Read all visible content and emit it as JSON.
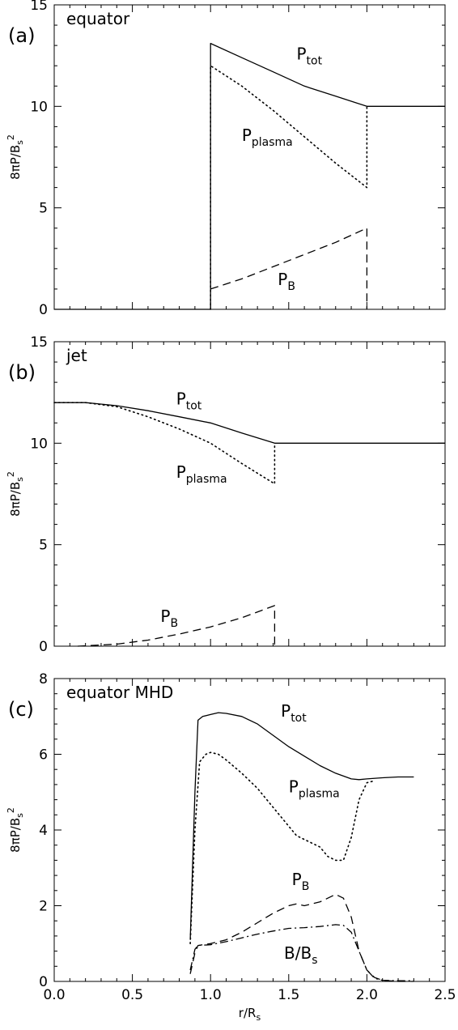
{
  "chart_data": [
    {
      "type": "line",
      "tag": "(a)",
      "title": "equator",
      "ylabel": {
        "base": "8πP/B",
        "sub": "s",
        "sup": "2"
      },
      "xlim": [
        0,
        2.5
      ],
      "ylim": [
        0,
        15
      ],
      "yticks": [
        0,
        5,
        10,
        15
      ],
      "ytick_labels": [
        "0",
        "5",
        "10",
        "15"
      ],
      "series": [
        {
          "name": "P_tot",
          "style": "solid",
          "points": [
            [
              0,
              0
            ],
            [
              1.0,
              0
            ],
            [
              1.0,
              13.1
            ],
            [
              1.2,
              12.4
            ],
            [
              1.4,
              11.7
            ],
            [
              1.6,
              11.0
            ],
            [
              1.8,
              10.5
            ],
            [
              2.0,
              10.0
            ],
            [
              2.5,
              10.0
            ]
          ]
        },
        {
          "name": "P_plasma",
          "style": "dotted",
          "points": [
            [
              1.0,
              0
            ],
            [
              1.0,
              12.0
            ],
            [
              1.2,
              11.0
            ],
            [
              1.4,
              9.8
            ],
            [
              1.6,
              8.5
            ],
            [
              1.8,
              7.2
            ],
            [
              2.0,
              6.0
            ],
            [
              2.0,
              10.0
            ]
          ]
        },
        {
          "name": "P_B",
          "style": "dashed",
          "points": [
            [
              1.0,
              1.0
            ],
            [
              1.2,
              1.5
            ],
            [
              1.4,
              2.1
            ],
            [
              1.6,
              2.7
            ],
            [
              1.8,
              3.3
            ],
            [
              2.0,
              4.0
            ],
            [
              2.0,
              0
            ]
          ]
        }
      ],
      "annotations": [
        {
          "base": "P",
          "sub": "tot",
          "x": 1.55,
          "y": 12.3
        },
        {
          "base": "P",
          "sub": "plasma",
          "x": 1.2,
          "y": 8.3
        },
        {
          "base": "P",
          "sub": "B",
          "x": 1.43,
          "y": 1.2
        }
      ]
    },
    {
      "type": "line",
      "tag": "(b)",
      "title": "jet",
      "ylabel": {
        "base": "8πP/B",
        "sub": "s",
        "sup": "2"
      },
      "xlim": [
        0,
        2.5
      ],
      "ylim": [
        0,
        15
      ],
      "yticks": [
        0,
        5,
        10,
        15
      ],
      "ytick_labels": [
        "0",
        "5",
        "10",
        "15"
      ],
      "series": [
        {
          "name": "P_tot",
          "style": "solid",
          "points": [
            [
              0,
              12.0
            ],
            [
              0.2,
              12.0
            ],
            [
              0.4,
              11.85
            ],
            [
              0.6,
              11.6
            ],
            [
              0.8,
              11.3
            ],
            [
              1.0,
              11.0
            ],
            [
              1.2,
              10.5
            ],
            [
              1.41,
              10.0
            ],
            [
              2.5,
              10.0
            ]
          ]
        },
        {
          "name": "P_plasma",
          "style": "dotted",
          "points": [
            [
              0,
              12.0
            ],
            [
              0.2,
              12.0
            ],
            [
              0.4,
              11.8
            ],
            [
              0.6,
              11.3
            ],
            [
              0.8,
              10.7
            ],
            [
              1.0,
              10.0
            ],
            [
              1.2,
              9.0
            ],
            [
              1.41,
              8.0
            ],
            [
              1.41,
              10.0
            ]
          ]
        },
        {
          "name": "P_B",
          "style": "dashed",
          "points": [
            [
              0.15,
              0
            ],
            [
              0.4,
              0.1
            ],
            [
              0.6,
              0.3
            ],
            [
              0.8,
              0.6
            ],
            [
              1.0,
              0.95
            ],
            [
              1.2,
              1.4
            ],
            [
              1.41,
              2.0
            ],
            [
              1.41,
              0
            ]
          ]
        }
      ],
      "annotations": [
        {
          "base": "P",
          "sub": "tot",
          "x": 0.78,
          "y": 11.9
        },
        {
          "base": "P",
          "sub": "plasma",
          "x": 0.78,
          "y": 8.3
        },
        {
          "base": "P",
          "sub": "B",
          "x": 0.68,
          "y": 1.2
        }
      ]
    },
    {
      "type": "line",
      "tag": "(c)",
      "title": "equator MHD",
      "ylabel": {
        "base": "8πP/B",
        "sub": "s",
        "sup": "2"
      },
      "xlabel": {
        "base": "r/R",
        "sub": "s"
      },
      "xlim": [
        0,
        2.5
      ],
      "xticks": [
        0.0,
        0.5,
        1.0,
        1.5,
        2.0,
        2.5
      ],
      "xtick_labels": [
        "0.0",
        "0.5",
        "1.0",
        "1.5",
        "2.0",
        "2.5"
      ],
      "ylim": [
        0,
        8
      ],
      "yticks": [
        0,
        2,
        4,
        6,
        8
      ],
      "ytick_labels": [
        "0",
        "2",
        "4",
        "6",
        "8"
      ],
      "series": [
        {
          "name": "P_tot",
          "style": "solid",
          "points": [
            [
              0.87,
              1.1
            ],
            [
              0.9,
              5.0
            ],
            [
              0.92,
              6.9
            ],
            [
              0.95,
              7.0
            ],
            [
              1.0,
              7.05
            ],
            [
              1.05,
              7.1
            ],
            [
              1.1,
              7.08
            ],
            [
              1.2,
              7.0
            ],
            [
              1.3,
              6.8
            ],
            [
              1.4,
              6.5
            ],
            [
              1.5,
              6.2
            ],
            [
              1.6,
              5.95
            ],
            [
              1.7,
              5.7
            ],
            [
              1.8,
              5.5
            ],
            [
              1.9,
              5.35
            ],
            [
              1.95,
              5.33
            ],
            [
              2.0,
              5.35
            ],
            [
              2.1,
              5.38
            ],
            [
              2.2,
              5.4
            ],
            [
              2.3,
              5.4
            ]
          ]
        },
        {
          "name": "P_plasma",
          "style": "dotted",
          "points": [
            [
              0.87,
              1.0
            ],
            [
              0.9,
              4.0
            ],
            [
              0.93,
              5.8
            ],
            [
              0.97,
              6.0
            ],
            [
              1.0,
              6.05
            ],
            [
              1.05,
              6.0
            ],
            [
              1.1,
              5.85
            ],
            [
              1.2,
              5.5
            ],
            [
              1.3,
              5.1
            ],
            [
              1.4,
              4.6
            ],
            [
              1.5,
              4.1
            ],
            [
              1.55,
              3.85
            ],
            [
              1.6,
              3.75
            ],
            [
              1.7,
              3.55
            ],
            [
              1.75,
              3.3
            ],
            [
              1.8,
              3.2
            ],
            [
              1.85,
              3.2
            ],
            [
              1.9,
              3.8
            ],
            [
              1.95,
              4.8
            ],
            [
              2.0,
              5.25
            ],
            [
              2.05,
              5.3
            ]
          ]
        },
        {
          "name": "P_B",
          "style": "dashed",
          "points": [
            [
              0.87,
              0.2
            ],
            [
              0.9,
              0.75
            ],
            [
              0.92,
              0.95
            ],
            [
              1.0,
              1.0
            ],
            [
              1.1,
              1.1
            ],
            [
              1.2,
              1.3
            ],
            [
              1.3,
              1.55
            ],
            [
              1.4,
              1.8
            ],
            [
              1.5,
              2.0
            ],
            [
              1.55,
              2.05
            ],
            [
              1.6,
              2.0
            ],
            [
              1.7,
              2.1
            ],
            [
              1.8,
              2.3
            ],
            [
              1.85,
              2.2
            ],
            [
              1.9,
              1.7
            ],
            [
              1.95,
              0.8
            ],
            [
              2.0,
              0.3
            ],
            [
              2.05,
              0.1
            ],
            [
              2.1,
              0.03
            ],
            [
              2.2,
              0.0
            ],
            [
              2.3,
              0.0
            ]
          ]
        },
        {
          "name": "B/B_s",
          "style": "dashdot",
          "points": [
            [
              0.87,
              0.3
            ],
            [
              0.9,
              0.85
            ],
            [
              0.92,
              0.95
            ],
            [
              1.0,
              0.97
            ],
            [
              1.1,
              1.05
            ],
            [
              1.2,
              1.15
            ],
            [
              1.3,
              1.25
            ],
            [
              1.4,
              1.33
            ],
            [
              1.5,
              1.4
            ],
            [
              1.6,
              1.42
            ],
            [
              1.7,
              1.45
            ],
            [
              1.8,
              1.5
            ],
            [
              1.85,
              1.48
            ],
            [
              1.9,
              1.3
            ],
            [
              1.95,
              0.8
            ],
            [
              2.0,
              0.3
            ],
            [
              2.05,
              0.08
            ],
            [
              2.1,
              0.03
            ],
            [
              2.2,
              0.02
            ],
            [
              2.3,
              0.02
            ]
          ]
        }
      ],
      "annotations": [
        {
          "base": "P",
          "sub": "tot",
          "x": 1.45,
          "y": 7.0
        },
        {
          "base": "P",
          "sub": "plasma",
          "x": 1.5,
          "y": 5.0
        },
        {
          "base": "P",
          "sub": "B",
          "x": 1.52,
          "y": 2.55
        },
        {
          "base": "B/B",
          "sub": "s",
          "x": 1.47,
          "y": 0.6
        }
      ]
    }
  ]
}
